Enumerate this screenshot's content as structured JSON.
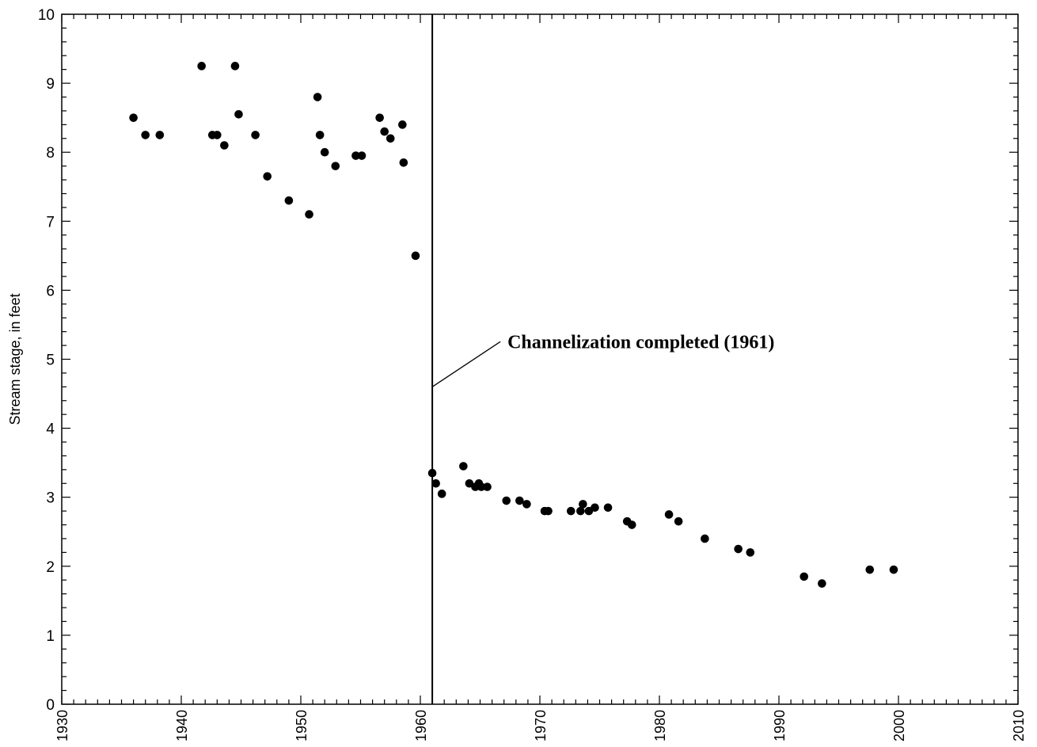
{
  "chart_data": {
    "type": "scatter",
    "title": "",
    "xlabel": "",
    "ylabel": "Stream stage, in feet",
    "xlim": [
      1930,
      2010
    ],
    "ylim": [
      0,
      10
    ],
    "x_ticks": [
      1930,
      1940,
      1950,
      1960,
      1970,
      1980,
      1990,
      2000,
      2010
    ],
    "y_ticks": [
      0,
      1,
      2,
      3,
      4,
      5,
      6,
      7,
      8,
      9,
      10
    ],
    "x_tick_labels": [
      "1930",
      "1940",
      "1950",
      "1960",
      "1970",
      "1980",
      "1990",
      "2000",
      "2010"
    ],
    "y_tick_labels": [
      "0",
      "1",
      "2",
      "3",
      "4",
      "5",
      "6",
      "7",
      "8",
      "9",
      "10"
    ],
    "grid": false,
    "series": [
      {
        "marker_color": "#000000",
        "points": [
          [
            1936.0,
            8.5
          ],
          [
            1937.0,
            8.25
          ],
          [
            1938.2,
            8.25
          ],
          [
            1941.7,
            9.25
          ],
          [
            1942.6,
            8.25
          ],
          [
            1943.0,
            8.25
          ],
          [
            1943.6,
            8.1
          ],
          [
            1944.5,
            9.25
          ],
          [
            1944.8,
            8.55
          ],
          [
            1946.2,
            8.25
          ],
          [
            1947.2,
            7.65
          ],
          [
            1949.0,
            7.3
          ],
          [
            1950.7,
            7.1
          ],
          [
            1951.4,
            8.8
          ],
          [
            1951.6,
            8.25
          ],
          [
            1952.0,
            8.0
          ],
          [
            1952.9,
            7.8
          ],
          [
            1954.6,
            7.95
          ],
          [
            1955.1,
            7.95
          ],
          [
            1956.6,
            8.5
          ],
          [
            1957.0,
            8.3
          ],
          [
            1957.5,
            8.2
          ],
          [
            1958.5,
            8.4
          ],
          [
            1958.6,
            7.85
          ],
          [
            1959.6,
            6.5
          ],
          [
            1961.0,
            3.35
          ],
          [
            1961.3,
            3.2
          ],
          [
            1961.8,
            3.05
          ],
          [
            1963.6,
            3.45
          ],
          [
            1964.1,
            3.2
          ],
          [
            1964.6,
            3.15
          ],
          [
            1964.9,
            3.2
          ],
          [
            1965.1,
            3.15
          ],
          [
            1965.6,
            3.15
          ],
          [
            1967.2,
            2.95
          ],
          [
            1968.3,
            2.95
          ],
          [
            1968.9,
            2.9
          ],
          [
            1970.4,
            2.8
          ],
          [
            1970.7,
            2.8
          ],
          [
            1972.6,
            2.8
          ],
          [
            1973.4,
            2.8
          ],
          [
            1973.6,
            2.9
          ],
          [
            1974.1,
            2.8
          ],
          [
            1974.6,
            2.85
          ],
          [
            1975.7,
            2.85
          ],
          [
            1977.3,
            2.65
          ],
          [
            1977.7,
            2.6
          ],
          [
            1980.8,
            2.75
          ],
          [
            1981.6,
            2.65
          ],
          [
            1983.8,
            2.4
          ],
          [
            1986.6,
            2.25
          ],
          [
            1987.6,
            2.2
          ],
          [
            1992.1,
            1.85
          ],
          [
            1993.6,
            1.75
          ],
          [
            1997.6,
            1.95
          ],
          [
            1999.6,
            1.95
          ]
        ]
      }
    ],
    "vertical_line": {
      "x": 1961.0
    },
    "annotations": [
      {
        "text": "Channelization completed (1961)",
        "target_x": 1961.0,
        "target_y": 4.6
      }
    ]
  }
}
